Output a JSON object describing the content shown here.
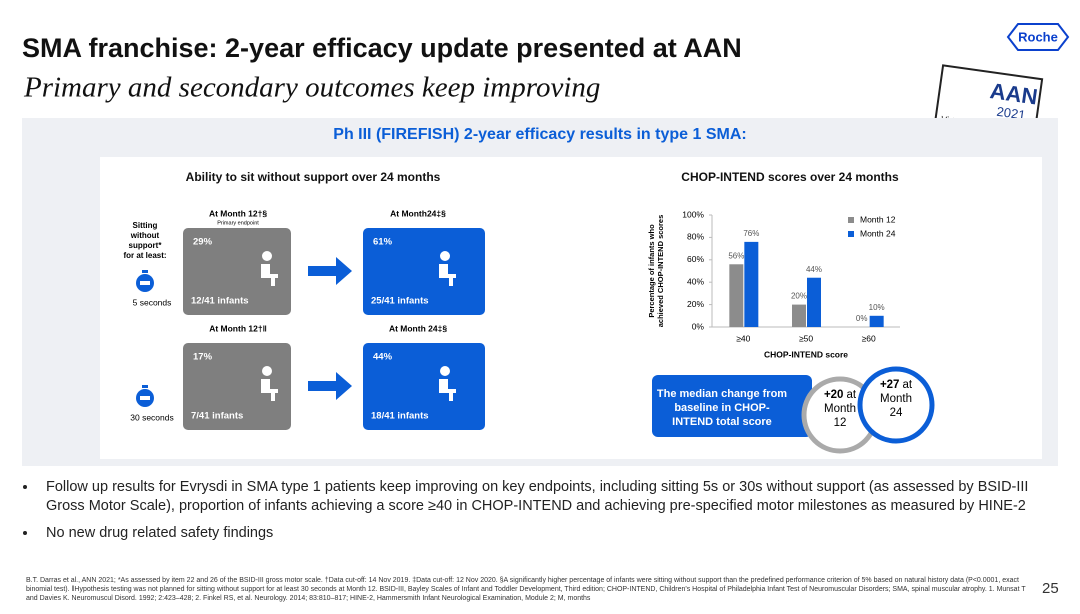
{
  "header": {
    "title": "SMA franchise: 2-year efficacy update presented at AAN",
    "subtitle": "Primary and secondary outcomes keep improving",
    "logo": "Roche",
    "badge": [
      "AAN",
      "2021",
      "Virtual Annual Meeting"
    ]
  },
  "panel_title": "Ph III (FIREFISH) 2-year efficacy results in type 1 SMA:",
  "sitting": {
    "title": "Ability to sit without support over 24 months",
    "side_label": [
      "Sitting",
      "without",
      "support*",
      "for at least:"
    ],
    "rows": [
      {
        "duration": "5 seconds",
        "left": {
          "heading": "At Month 12†§",
          "sub": "Primary endpoint",
          "pct": "29%",
          "infants": "12/41 infants"
        },
        "right": {
          "heading": "At Month24‡§",
          "pct": "61%",
          "infants": "25/41 infants"
        }
      },
      {
        "duration": "30 seconds",
        "left": {
          "heading": "At Month 12†‖",
          "pct": "17%",
          "infants": "7/41 infants"
        },
        "right": {
          "heading": "At Month 24‡§",
          "pct": "44%",
          "infants": "18/41 infants"
        }
      }
    ]
  },
  "chart_data": {
    "type": "bar",
    "title": "CHOP-INTEND scores over 24 months",
    "ylabel": [
      "Percentage of infants who",
      "achieved CHOP-INTEND scores"
    ],
    "xlabel": "CHOP-INTEND score",
    "categories": [
      "≥40",
      "≥50",
      "≥60"
    ],
    "series": [
      {
        "name": "Month 12",
        "color": "#8c8c8c",
        "values": [
          56,
          20,
          0
        ],
        "value_labels": [
          "56%",
          "20%",
          "0%"
        ]
      },
      {
        "name": "Month 24",
        "color": "#0b5ed7",
        "values": [
          76,
          44,
          10
        ],
        "value_labels": [
          "76%",
          "44%",
          "10%"
        ]
      }
    ],
    "ylim": [
      0,
      100
    ],
    "yticks": [
      {
        "value": 0,
        "label": "0%"
      },
      {
        "value": 20,
        "label": "20%"
      },
      {
        "value": 40,
        "label": "40%"
      },
      {
        "value": 60,
        "label": "60%"
      },
      {
        "value": 80,
        "label": "80%"
      },
      {
        "value": 100,
        "label": "100%"
      }
    ],
    "legend": "upper right"
  },
  "median": {
    "text": [
      "The median change from",
      "baseline in CHOP-",
      "INTEND total score"
    ],
    "circles": [
      {
        "value": "+20",
        "lines": [
          "at",
          "Month",
          "12"
        ]
      },
      {
        "value": "+27",
        "lines": [
          "at",
          "Month",
          "24"
        ]
      }
    ]
  },
  "bullets": [
    "Follow up results for Evrysdi in SMA type 1 patients keep improving on key endpoints, including sitting 5s or 30s without support (as assessed by BSID-III Gross Motor Scale), proportion of infants achieving a score ≥40 in CHOP-INTEND and achieving pre-specified motor milestones as measured by HINE-2",
    "No new drug related safety findings"
  ],
  "footnote": "B.T. Darras et al., ANN 2021; *As assessed by item 22 and 26 of the BSID-III gross motor scale. †Data cut-off: 14 Nov 2019. ‡Data cut-off: 12 Nov 2020. §A significantly higher percentage of infants were sitting without support than the predefined performance criterion of 5% based on natural history data (P<0.0001, exact binomial test). ‖Hypothesis testing was not planned for sitting without support for at least 30 seconds at Month 12. BSID-III, Bayley Scales of Infant and Toddler Development, Third edition; CHOP-INTEND, Children's Hospital of Philadelphia Infant Test of Neuromuscular Disorders; SMA, spinal muscular atrophy. 1. Munsat T and Davies K. Neuromuscul Disord. 1992; 2:423–428; 2. Finkel RS, et al. Neurology. 2014; 83:810–817; HINE-2, Hammersmith Infant Neurological Examination, Module 2; M, months",
  "page_number": "25"
}
